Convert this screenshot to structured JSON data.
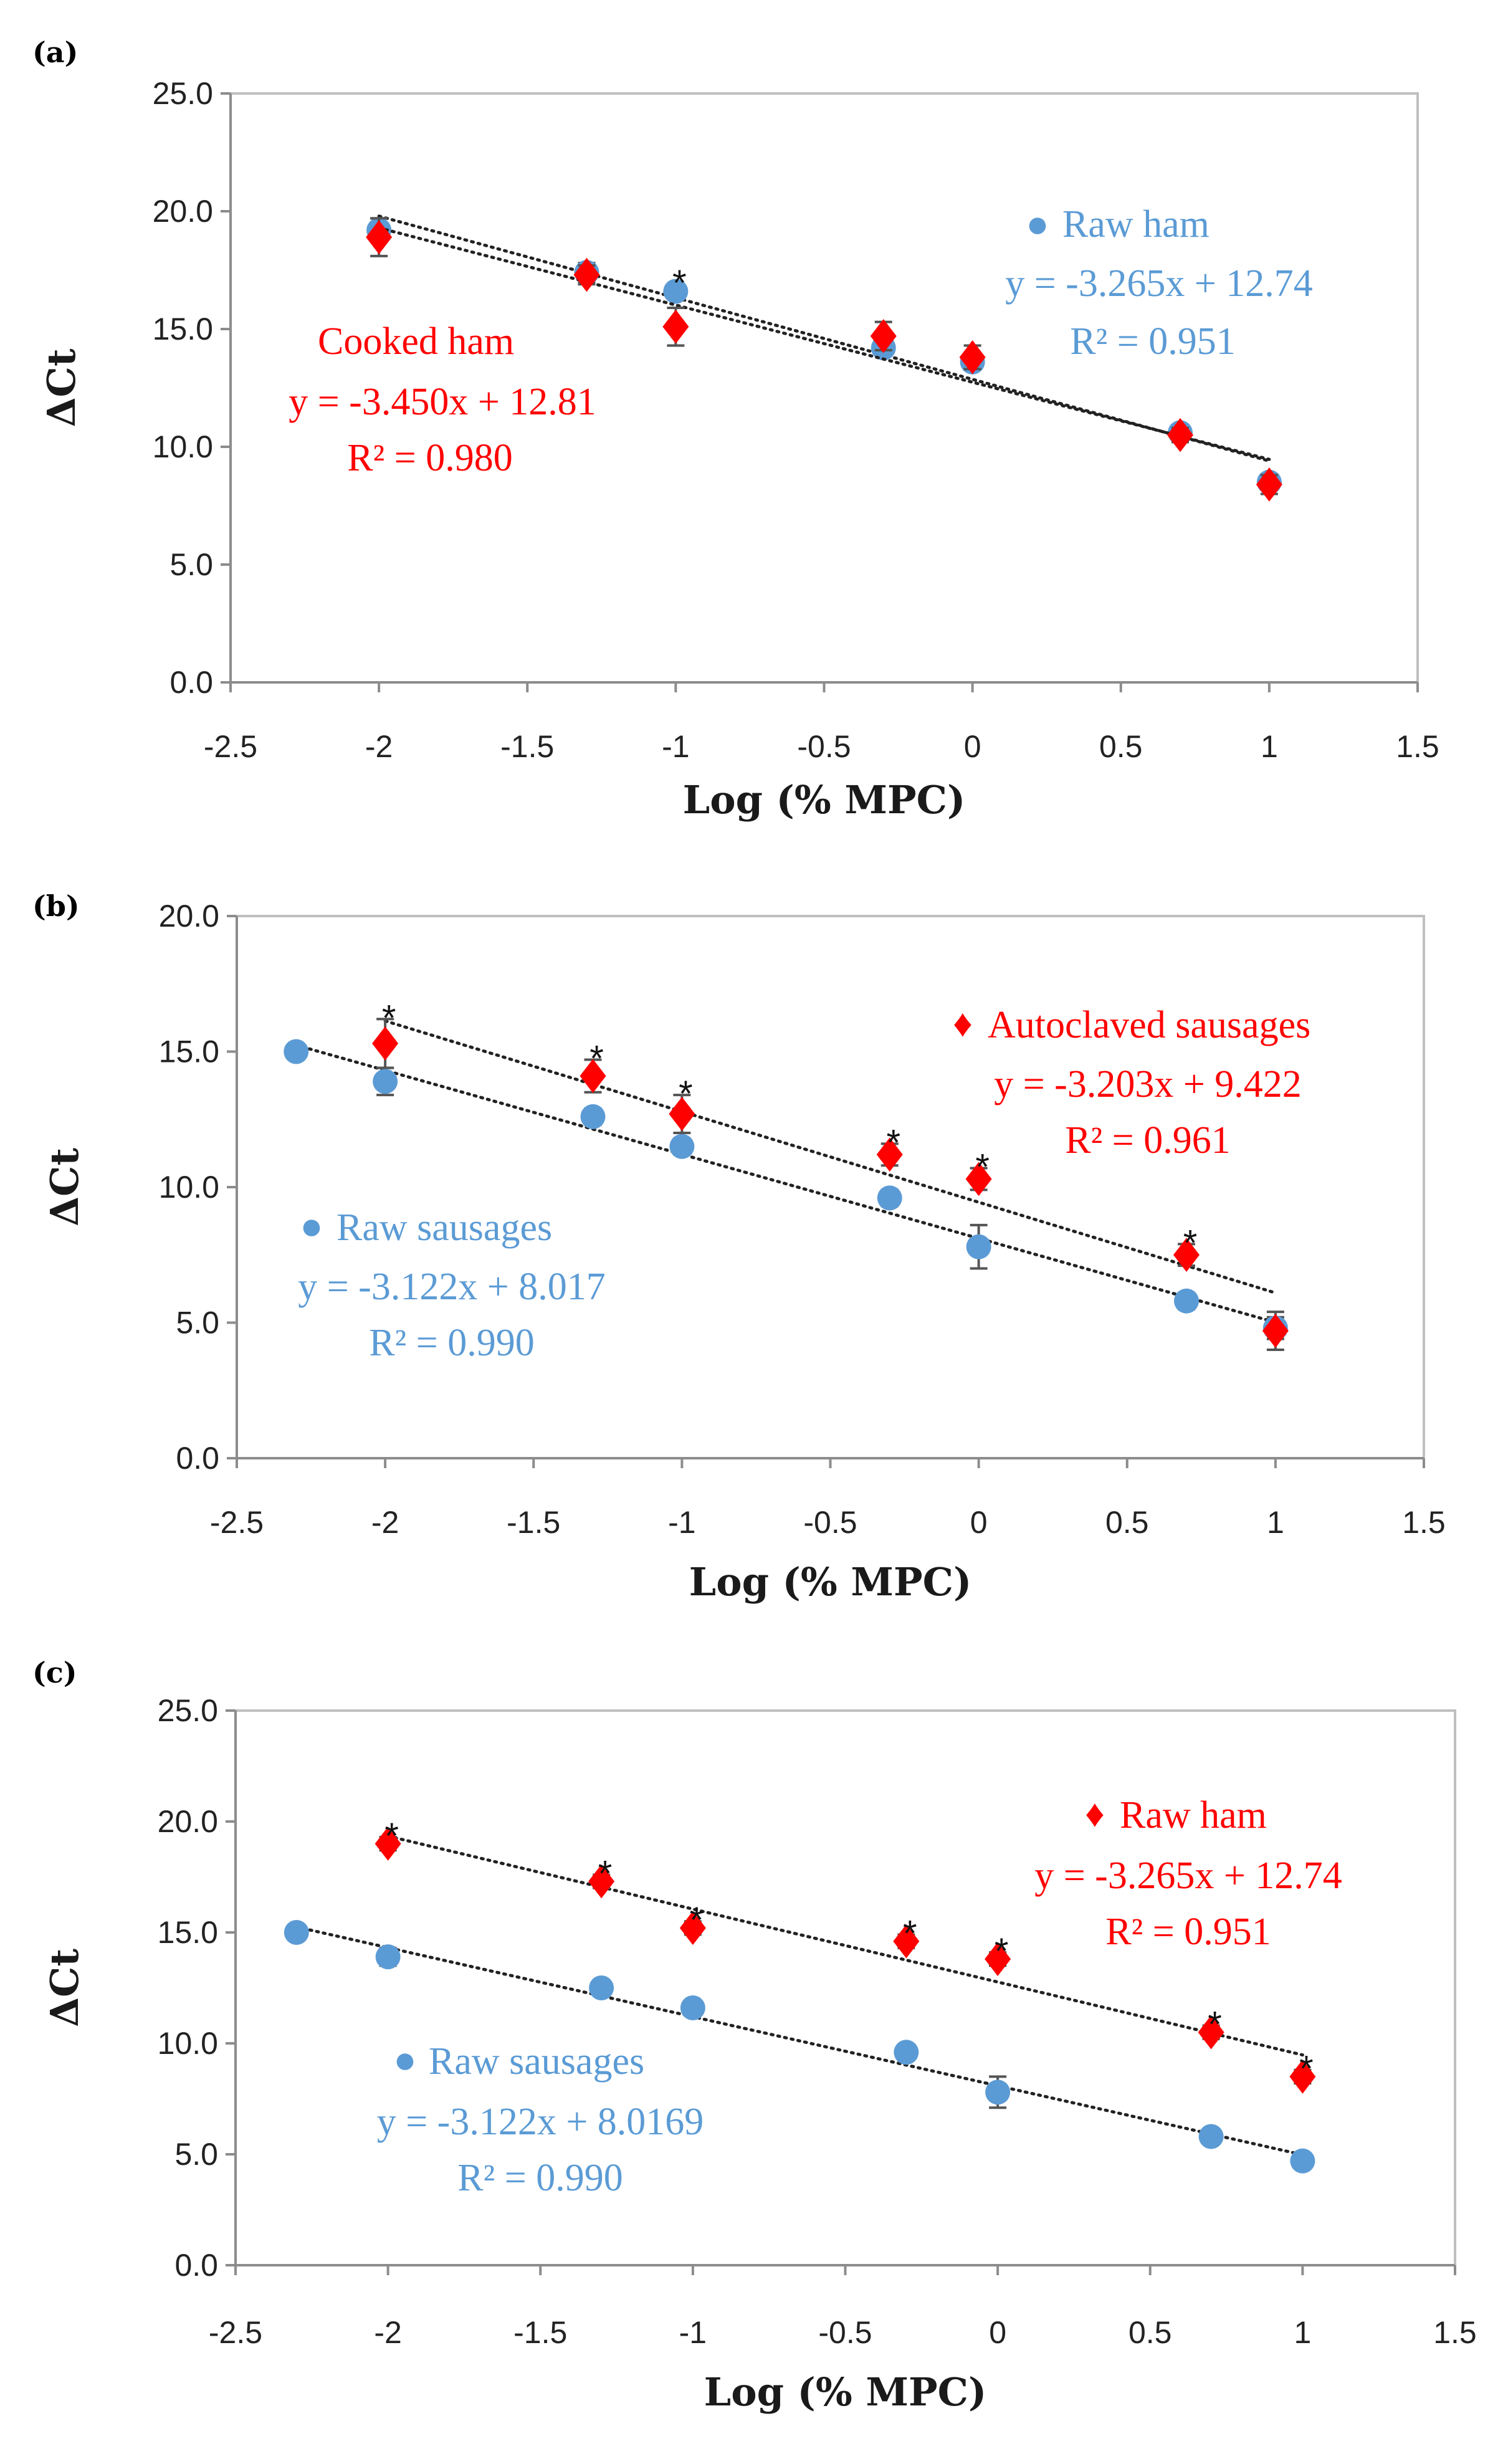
{
  "chart_data": [
    {
      "type": "scatter",
      "panel_label": "(a)",
      "xlabel": "Log (% MPC)",
      "ylabel": "ΔCt",
      "xlim": [
        -2.5,
        1.5
      ],
      "ylim": [
        0,
        25
      ],
      "x_ticks": [
        "-2.5",
        "-2",
        "-1.5",
        "-1",
        "-0.5",
        "0",
        "0.5",
        "1",
        "1.5"
      ],
      "y_ticks": [
        "0.0",
        "5.0",
        "10.0",
        "15.0",
        "20.0",
        "25.0"
      ],
      "grid": false,
      "series": [
        {
          "name": "Raw ham",
          "marker": "circle",
          "color": "#5b9bd5",
          "x": [
            -2,
            -1.3,
            -1,
            -0.3,
            0,
            0.7,
            1
          ],
          "y": [
            19.2,
            17.4,
            16.6,
            14.2,
            13.6,
            10.6,
            8.5
          ],
          "err": [
            0.5,
            0.4,
            0.3,
            0.3,
            0.3,
            0.3,
            0.3
          ],
          "equation": "y = -3.265x + 12.74",
          "r2": "R² = 0.951",
          "legend_label": "Raw ham",
          "legend_marker": "●"
        },
        {
          "name": "Cooked ham",
          "marker": "diamond",
          "color": "#ff0000",
          "x": [
            -2,
            -1.3,
            -1,
            -0.3,
            0,
            0.7,
            1
          ],
          "y": [
            18.9,
            17.3,
            15.1,
            14.7,
            13.8,
            10.5,
            8.4
          ],
          "err": [
            0.8,
            0.4,
            0.8,
            0.6,
            0.5,
            0.3,
            0.4
          ],
          "equation": "y = -3.450x + 12.81",
          "r2": "R² = 0.980",
          "legend_label": "Cooked ham",
          "legend_marker": ""
        }
      ],
      "asterisks": [
        {
          "x": -1,
          "text": "*"
        }
      ]
    },
    {
      "type": "scatter",
      "panel_label": "(b)",
      "xlabel": "Log (% MPC)",
      "ylabel": "ΔCt",
      "xlim": [
        -2.5,
        1.5
      ],
      "ylim": [
        0,
        20
      ],
      "x_ticks": [
        "-2.5",
        "-2",
        "-1.5",
        "-1",
        "-0.5",
        "0",
        "0.5",
        "1",
        "1.5"
      ],
      "y_ticks": [
        "0.0",
        "5.0",
        "10.0",
        "15.0",
        "20.0"
      ],
      "grid": false,
      "series": [
        {
          "name": "Raw sausages",
          "marker": "circle",
          "color": "#5b9bd5",
          "x": [
            -2.3,
            -2,
            -1.3,
            -1,
            -0.3,
            0,
            0.7,
            1
          ],
          "y": [
            15.0,
            13.9,
            12.6,
            11.5,
            9.6,
            7.8,
            5.8,
            4.8
          ],
          "err": [
            0.2,
            0.5,
            0.3,
            0.3,
            0.3,
            0.8,
            0.3,
            0.4
          ],
          "equation": "y = -3.122x + 8.017",
          "r2": "R² = 0.990",
          "legend_label": "Raw sausages",
          "legend_marker": "●"
        },
        {
          "name": "Autoclaved sausages",
          "marker": "diamond",
          "color": "#ff0000",
          "x": [
            -2,
            -1.3,
            -1,
            -0.3,
            0,
            0.7,
            1
          ],
          "y": [
            15.3,
            14.1,
            12.7,
            11.2,
            10.3,
            7.5,
            4.7
          ],
          "err": [
            0.9,
            0.6,
            0.7,
            0.4,
            0.4,
            0.4,
            0.7
          ],
          "equation": "y = -3.203x + 9.422",
          "r2": "R² = 0.961",
          "legend_label": "Autoclaved sausages",
          "legend_marker": "♦"
        }
      ],
      "asterisks": [
        {
          "x": -2,
          "text": "*"
        },
        {
          "x": -1.3,
          "text": "*"
        },
        {
          "x": -1,
          "text": "*"
        },
        {
          "x": -0.3,
          "text": "*"
        },
        {
          "x": 0,
          "text": "*"
        },
        {
          "x": 0.7,
          "text": "*"
        }
      ]
    },
    {
      "type": "scatter",
      "panel_label": "(c)",
      "xlabel": "Log (% MPC)",
      "ylabel": "ΔCt",
      "xlim": [
        -2.5,
        1.5
      ],
      "ylim": [
        0,
        25
      ],
      "x_ticks": [
        "-2.5",
        "-2",
        "-1.5",
        "-1",
        "-0.5",
        "0",
        "0.5",
        "1",
        "1.5"
      ],
      "y_ticks": [
        "0.0",
        "5.0",
        "10.0",
        "15.0",
        "20.0",
        "25.0"
      ],
      "grid": false,
      "series": [
        {
          "name": "Raw sausages",
          "marker": "circle",
          "color": "#5b9bd5",
          "x": [
            -2.3,
            -2,
            -1.3,
            -1,
            -0.3,
            0,
            0.7,
            1
          ],
          "y": [
            15.0,
            13.9,
            12.5,
            11.6,
            9.6,
            7.8,
            5.8,
            4.7
          ],
          "err": [
            0.2,
            0.4,
            0.3,
            0.3,
            0.3,
            0.7,
            0.3,
            0.3
          ],
          "equation": "y = -3.122x + 8.0169",
          "r2": "R² = 0.990",
          "legend_label": "Raw sausages",
          "legend_marker": "●"
        },
        {
          "name": "Raw ham",
          "marker": "diamond",
          "color": "#ff0000",
          "x": [
            -2,
            -1.3,
            -1,
            -0.3,
            0,
            0.7,
            1
          ],
          "y": [
            19.0,
            17.3,
            15.2,
            14.6,
            13.8,
            10.5,
            8.5
          ],
          "err": [
            0.3,
            0.3,
            0.3,
            0.3,
            0.3,
            0.3,
            0.3
          ],
          "equation": "y = -3.265x + 12.74",
          "r2": "R² = 0.951",
          "legend_label": "Raw ham",
          "legend_marker": "♦"
        }
      ],
      "asterisks": [
        {
          "x": -2,
          "text": "*"
        },
        {
          "x": -1.3,
          "text": "*"
        },
        {
          "x": -1,
          "text": "*"
        },
        {
          "x": -0.3,
          "text": "*"
        },
        {
          "x": 0,
          "text": "*"
        },
        {
          "x": 0.7,
          "text": "*"
        },
        {
          "x": 1,
          "text": "*"
        }
      ]
    }
  ]
}
